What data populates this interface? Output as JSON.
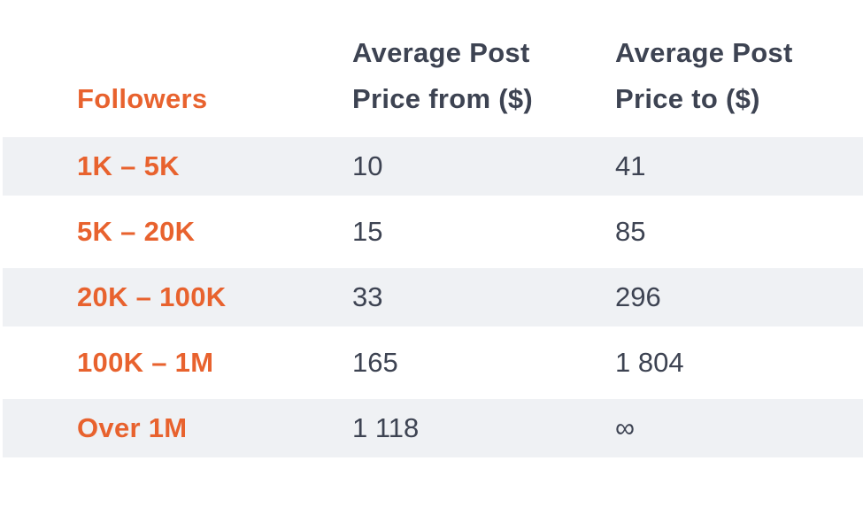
{
  "chart_data": {
    "type": "table",
    "columns": [
      "Followers",
      "Average Post Price from ($)",
      "Average Post Price to ($)"
    ],
    "header": {
      "followers": "Followers",
      "from_line1": "Average Post",
      "from_line2": "Price from ($)",
      "to_line1": "Average Post",
      "to_line2": "Price to ($)"
    },
    "rows": [
      {
        "followers": "1K – 5K",
        "from": "10",
        "to": "41"
      },
      {
        "followers": "5K – 20K",
        "from": "15",
        "to": "85"
      },
      {
        "followers": "20K – 100K",
        "from": "33",
        "to": "296"
      },
      {
        "followers": "100K – 1M",
        "from": "165",
        "to": "1 804"
      },
      {
        "followers": "Over 1M",
        "from": "1 118",
        "to": "∞"
      }
    ]
  },
  "colors": {
    "accent": "#e8622e",
    "text": "#3d4352",
    "row_shade": "#eff1f4"
  }
}
